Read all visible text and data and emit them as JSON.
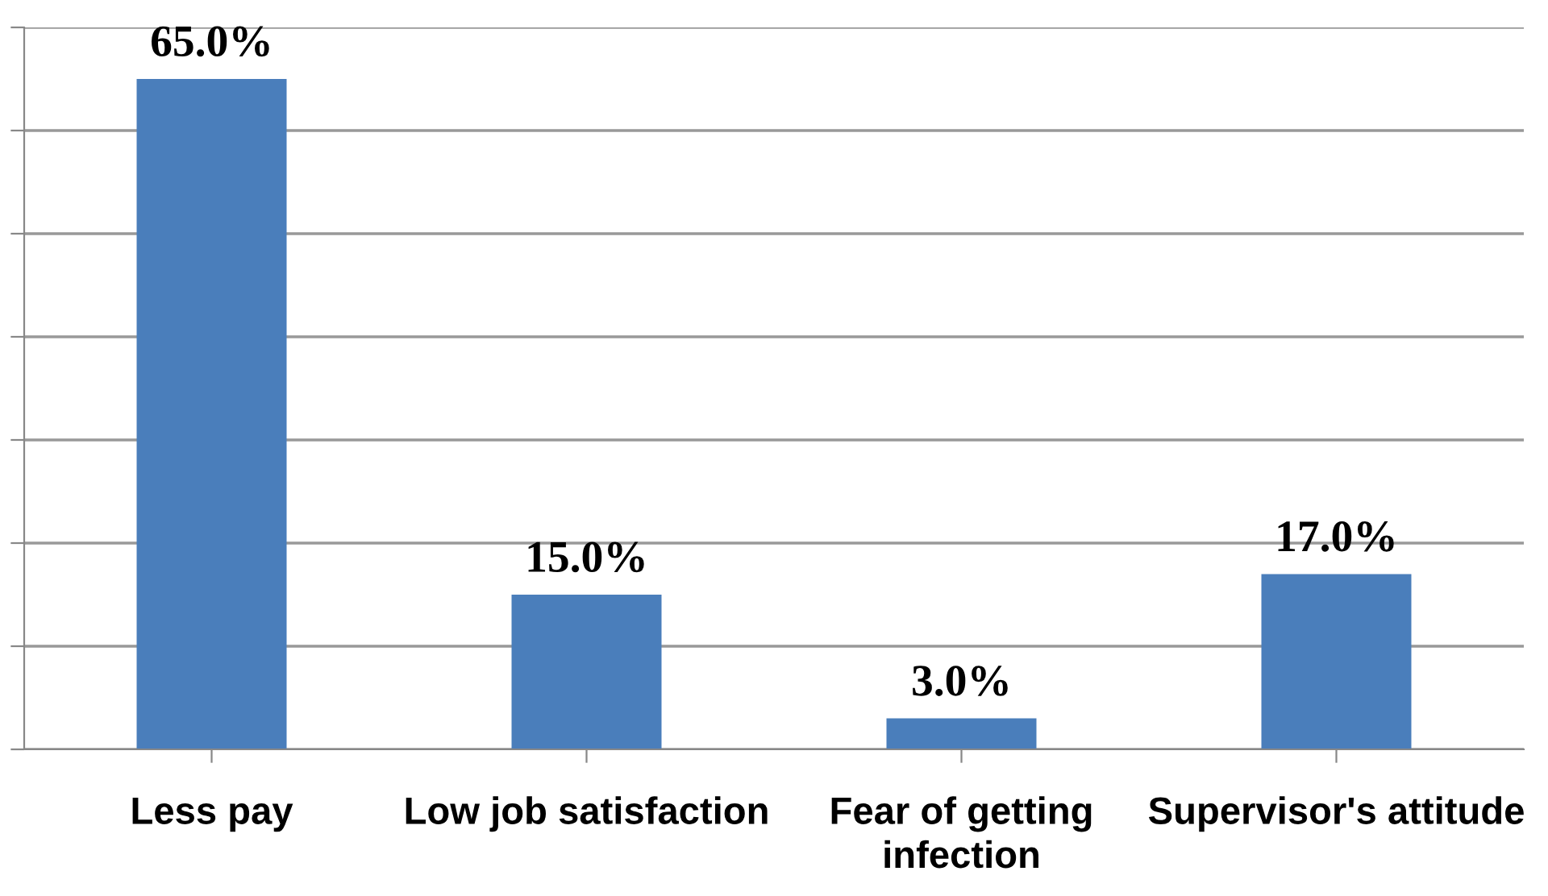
{
  "chart_data": {
    "type": "bar",
    "categories": [
      "Less pay",
      "Low job satisfaction",
      "Fear of getting infection",
      "Supervisor's attitude"
    ],
    "values": [
      65,
      15,
      3,
      17
    ],
    "value_labels": [
      "65.0%",
      "15.0%",
      "3.0%",
      "17.0%"
    ],
    "color": "#4a7ebb",
    "ylim": [
      0,
      70
    ],
    "yticks": [
      {
        "value": 0,
        "label": null
      },
      {
        "value": 10,
        "label": null
      },
      {
        "value": 20,
        "label": null
      },
      {
        "value": 30,
        "label": null
      },
      {
        "value": 40,
        "label": null
      },
      {
        "value": 50,
        "label": null
      },
      {
        "value": 60,
        "label": null
      },
      {
        "value": 70,
        "label": null
      }
    ],
    "grid": "y",
    "tick_labels": "x"
  }
}
